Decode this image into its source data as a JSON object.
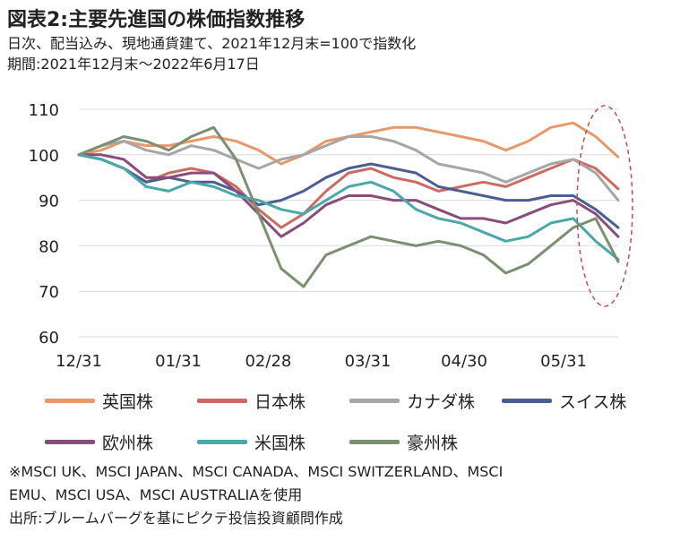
{
  "header": {
    "title": "図表2:主要先進国の株価指数推移",
    "subtitle_line1": "日次、配当込み、現地通貨建て、2021年12月末=100で指数化",
    "subtitle_line2": "期間:2021年12月末〜2022年6月17日"
  },
  "notes": {
    "line1": "※MSCI UK、MSCI JAPAN、MSCI CANADA、MSCI SWITZERLAND、MSCI",
    "line2": "EMU、MSCI USA、MSCI AUSTRALIAを使用",
    "line3": "出所:ブルームバーグを基にピクテ投信投資顧問作成"
  },
  "chart_data": {
    "type": "line",
    "x_tick_labels": [
      "12/31",
      "01/31",
      "02/28",
      "03/31",
      "04/30",
      "05/31"
    ],
    "y_ticks": [
      60,
      70,
      80,
      90,
      100,
      110
    ],
    "ylim": [
      60,
      110
    ],
    "grid": true,
    "legend_position": "bottom",
    "annotation": "dashed ellipse highlighting the most recent period (early to mid June)",
    "x_dates": [
      "2021-12-31",
      "2022-01-07",
      "2022-01-14",
      "2022-01-21",
      "2022-01-28",
      "2022-02-04",
      "2022-02-11",
      "2022-02-18",
      "2022-02-25",
      "2022-03-04",
      "2022-03-11",
      "2022-03-18",
      "2022-03-25",
      "2022-04-01",
      "2022-04-08",
      "2022-04-15",
      "2022-04-22",
      "2022-04-29",
      "2022-05-06",
      "2022-05-13",
      "2022-05-20",
      "2022-05-27",
      "2022-06-03",
      "2022-06-10",
      "2022-06-17"
    ],
    "series": [
      {
        "name": "英国株",
        "color": "#E8996A",
        "values": [
          100,
          101,
          103,
          102,
          102,
          103,
          104,
          103,
          101,
          98,
          100,
          103,
          104,
          105,
          106,
          106,
          105,
          104,
          103,
          101,
          103,
          106,
          107,
          104,
          99.5
        ]
      },
      {
        "name": "日本株",
        "color": "#CC6B62",
        "values": [
          100,
          99,
          97,
          94,
          96,
          97,
          96,
          93,
          88,
          84,
          87,
          92,
          96,
          97,
          95,
          94,
          92,
          93,
          94,
          93,
          95,
          97,
          99,
          97,
          92.5
        ]
      },
      {
        "name": "カナダ株",
        "color": "#A6A6A6",
        "values": [
          100,
          102,
          103,
          101,
          100,
          102,
          101,
          99,
          97,
          99,
          100,
          102,
          104,
          104,
          103,
          101,
          98,
          97,
          96,
          94,
          96,
          98,
          99,
          96,
          90
        ]
      },
      {
        "name": "スイス株",
        "color": "#4A5E94",
        "values": [
          100,
          99,
          97,
          94,
          95,
          94,
          94,
          92,
          89,
          90,
          92,
          95,
          97,
          98,
          97,
          96,
          93,
          92,
          91,
          90,
          90,
          91,
          91,
          88,
          84
        ]
      },
      {
        "name": "欧州株",
        "color": "#8A4D7A",
        "values": [
          100,
          100,
          99,
          95,
          95,
          96,
          96,
          92,
          87,
          82,
          85,
          89,
          91,
          91,
          90,
          90,
          88,
          86,
          86,
          85,
          87,
          89,
          90,
          87,
          82
        ]
      },
      {
        "name": "米国株",
        "color": "#4BA8A8",
        "values": [
          100,
          99,
          97,
          93,
          92,
          94,
          93,
          91,
          90,
          88,
          87,
          90,
          93,
          94,
          92,
          88,
          86,
          85,
          83,
          81,
          82,
          85,
          86,
          81,
          77
        ]
      },
      {
        "name": "豪州株",
        "color": "#7A9070",
        "values": [
          100,
          102,
          104,
          103,
          101,
          104,
          106,
          99,
          87,
          75,
          71,
          78,
          80,
          82,
          81,
          80,
          81,
          80,
          78,
          74,
          76,
          80,
          84,
          86,
          76.5
        ]
      }
    ]
  }
}
